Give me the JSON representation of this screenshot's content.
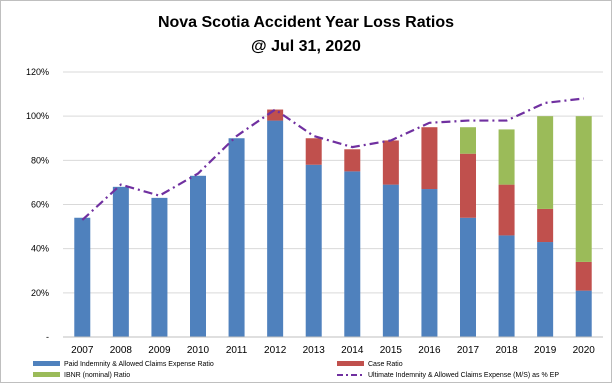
{
  "chart_data": {
    "type": "bar",
    "title_line1": "Nova Scotia Accident Year Loss Ratios",
    "title_line2": "@ Jul 31, 2020",
    "categories": [
      "2007",
      "2008",
      "2009",
      "2010",
      "2011",
      "2012",
      "2013",
      "2014",
      "2015",
      "2016",
      "2017",
      "2018",
      "2019",
      "2020"
    ],
    "y_tick_labels": [
      "-",
      "20%",
      "40%",
      "60%",
      "80%",
      "100%",
      "120%"
    ],
    "ylim": [
      0,
      120
    ],
    "grid": true,
    "legend_position": "bottom",
    "stacked": true,
    "series": [
      {
        "name": "Paid Indemnity & Allowed Claims Expense Ratio",
        "color": "#4f81bd",
        "values": [
          54,
          68,
          63,
          73,
          90,
          98,
          78,
          75,
          69,
          67,
          54,
          46,
          43,
          21
        ]
      },
      {
        "name": "Case Ratio",
        "color": "#c0504d",
        "values": [
          0,
          0,
          0,
          0,
          0,
          5,
          12,
          10,
          20,
          28,
          29,
          23,
          15,
          13
        ]
      },
      {
        "name": "IBNR (nominal) Ratio",
        "color": "#9bbb59",
        "values": [
          0,
          0,
          0,
          0,
          0,
          0,
          0,
          0,
          0,
          0,
          12,
          25,
          42,
          66
        ]
      }
    ],
    "line_series": {
      "name": "Ultimate Indemnity & Allowed Claims Expense (M/S) as % EP",
      "color": "#7030a0",
      "values": [
        53,
        69,
        64,
        74,
        91,
        103,
        91,
        86,
        89,
        97,
        98,
        98,
        106,
        108
      ]
    }
  }
}
